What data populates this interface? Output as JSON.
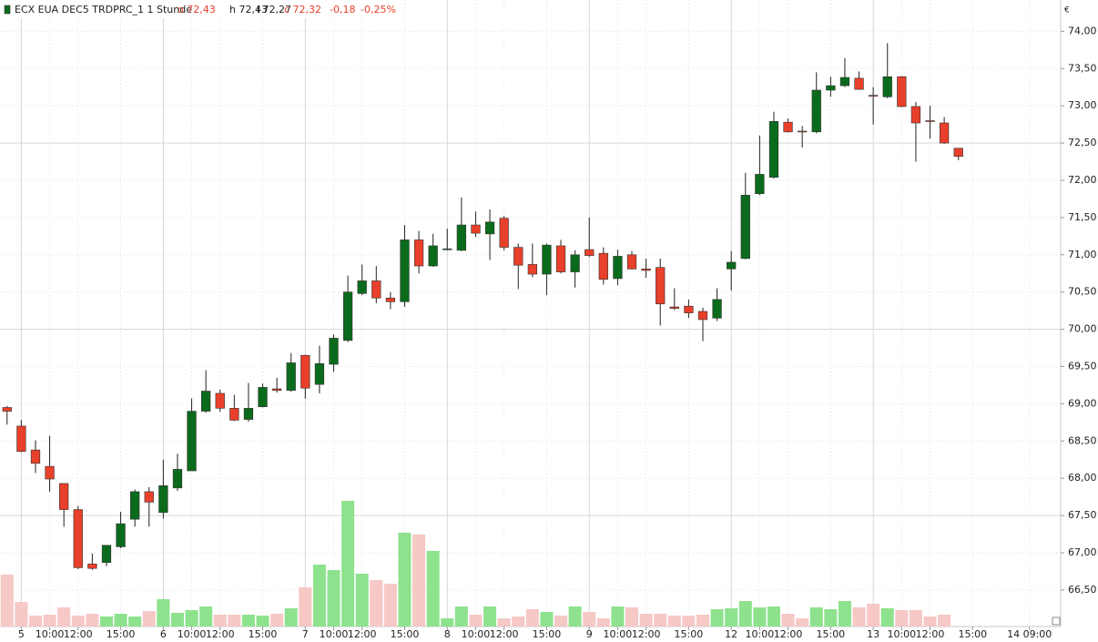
{
  "chart_data": {
    "type": "candlestick",
    "header": {
      "instrument": "ECX EUA DEC5 TRDPRC_1 1 Stunde",
      "open": "o 72,43",
      "high": "h 72,43",
      "low": "l 72,27",
      "close": "c 72,32",
      "change": "-0,18",
      "change_pct": "-0,25%"
    },
    "currency": "€",
    "up_color": "#0b6b1c",
    "down_color": "#e8402a",
    "volume_up_color": "#8ee28e",
    "volume_down_color": "#f6c8c6",
    "grid": true,
    "xlim": [
      -0.5,
      74.2
    ],
    "ylim": [
      66.01,
      74.42
    ],
    "xticks": [
      {
        "value": 1,
        "label": "5"
      },
      {
        "value": 3,
        "label": "10:00"
      },
      {
        "value": 5,
        "label": "12:00"
      },
      {
        "value": 8,
        "label": "15:00"
      },
      {
        "value": 11,
        "label": "6"
      },
      {
        "value": 13,
        "label": "10:00"
      },
      {
        "value": 15,
        "label": "12:00"
      },
      {
        "value": 18,
        "label": "15:00"
      },
      {
        "value": 21,
        "label": "7"
      },
      {
        "value": 23,
        "label": "10:00"
      },
      {
        "value": 25,
        "label": "12:00"
      },
      {
        "value": 28,
        "label": "15:00"
      },
      {
        "value": 31,
        "label": "8"
      },
      {
        "value": 33,
        "label": "10:00"
      },
      {
        "value": 35,
        "label": "12:00"
      },
      {
        "value": 38,
        "label": "15:00"
      },
      {
        "value": 41,
        "label": "9"
      },
      {
        "value": 43,
        "label": "10:00"
      },
      {
        "value": 45,
        "label": "12:00"
      },
      {
        "value": 48,
        "label": "15:00"
      },
      {
        "value": 51,
        "label": "12"
      },
      {
        "value": 53,
        "label": "10:00"
      },
      {
        "value": 55,
        "label": "12:00"
      },
      {
        "value": 58,
        "label": "15:00"
      },
      {
        "value": 61,
        "label": "13"
      },
      {
        "value": 63,
        "label": "10:00"
      },
      {
        "value": 65,
        "label": "12:00"
      },
      {
        "value": 68,
        "label": "15:00"
      },
      {
        "value": 72,
        "label": "14 09:00"
      }
    ],
    "yticks": [
      {
        "value": 66.5,
        "label": "66,50"
      },
      {
        "value": 67,
        "label": "67,00"
      },
      {
        "value": 67.5,
        "label": "67,50"
      },
      {
        "value": 68,
        "label": "68,00"
      },
      {
        "value": 68.5,
        "label": "68,50"
      },
      {
        "value": 69,
        "label": "69,00"
      },
      {
        "value": 69.5,
        "label": "69,50"
      },
      {
        "value": 70,
        "label": "70,00"
      },
      {
        "value": 70.5,
        "label": "70,50"
      },
      {
        "value": 71,
        "label": "71,00"
      },
      {
        "value": 71.5,
        "label": "71,50"
      },
      {
        "value": 72,
        "label": "72,00"
      },
      {
        "value": 72.5,
        "label": "72,50"
      },
      {
        "value": 73,
        "label": "73,00"
      },
      {
        "value": 73.5,
        "label": "73,50"
      },
      {
        "value": 74,
        "label": "74,00"
      }
    ],
    "open": [
      68.95,
      68.7,
      68.38,
      68.16,
      67.93,
      67.58,
      66.85,
      66.87,
      67.08,
      67.45,
      67.82,
      67.54,
      67.87,
      68.1,
      68.9,
      69.14,
      68.94,
      68.79,
      68.96,
      69.2,
      69.18,
      69.65,
      69.26,
      69.53,
      69.85,
      70.48,
      70.65,
      70.42,
      70.37,
      71.2,
      70.85,
      71.07,
      71.06,
      71.4,
      71.28,
      71.49,
      71.1,
      70.87,
      70.74,
      71.12,
      70.77,
      71.07,
      71.02,
      70.68,
      71.0,
      70.81,
      70.83,
      70.3,
      70.31,
      70.24,
      70.15,
      70.81,
      70.95,
      71.82,
      72.04,
      72.78,
      72.66,
      72.65,
      73.21,
      73.27,
      73.37,
      73.14,
      73.12,
      73.39,
      72.99,
      72.8,
      72.77,
      72.43
    ],
    "high": [
      68.97,
      68.78,
      68.51,
      68.57,
      67.93,
      67.63,
      66.99,
      67.1,
      67.55,
      67.85,
      67.88,
      68.25,
      68.33,
      69.07,
      69.45,
      69.19,
      69.12,
      69.28,
      69.27,
      69.35,
      69.68,
      69.66,
      69.78,
      69.93,
      70.72,
      70.87,
      70.85,
      70.5,
      71.4,
      71.32,
      71.28,
      71.35,
      71.77,
      71.58,
      71.61,
      71.52,
      71.15,
      71.15,
      71.15,
      71.2,
      71.06,
      71.5,
      71.1,
      71.07,
      71.05,
      70.95,
      70.95,
      70.55,
      70.4,
      70.29,
      70.55,
      71.05,
      72.1,
      72.6,
      72.92,
      72.83,
      72.73,
      73.45,
      73.39,
      73.64,
      73.46,
      73.25,
      73.84,
      73.4,
      73.05,
      73.0,
      72.85,
      72.43
    ],
    "low": [
      68.72,
      68.35,
      68.07,
      67.82,
      67.35,
      66.78,
      66.77,
      66.82,
      67.06,
      67.35,
      67.35,
      67.46,
      67.83,
      68.1,
      68.88,
      68.89,
      68.77,
      68.76,
      68.95,
      69.15,
      69.16,
      69.07,
      69.14,
      69.43,
      69.83,
      70.46,
      70.35,
      70.27,
      70.3,
      70.75,
      70.84,
      71.06,
      71.05,
      71.24,
      70.93,
      71.06,
      70.54,
      70.7,
      70.46,
      70.75,
      70.56,
      70.97,
      70.6,
      70.59,
      70.8,
      70.69,
      70.05,
      70.26,
      70.15,
      69.84,
      70.11,
      70.52,
      70.94,
      71.8,
      72.02,
      72.64,
      72.44,
      72.63,
      73.12,
      73.25,
      73.22,
      72.75,
      73.1,
      72.98,
      72.25,
      72.56,
      72.49,
      72.27
    ],
    "close": [
      68.9,
      68.36,
      68.2,
      67.99,
      67.58,
      66.8,
      66.79,
      67.1,
      67.39,
      67.82,
      67.68,
      67.9,
      68.12,
      68.9,
      69.17,
      68.94,
      68.78,
      68.94,
      69.22,
      69.18,
      69.55,
      69.21,
      69.54,
      69.88,
      70.5,
      70.65,
      70.42,
      70.37,
      71.2,
      70.85,
      71.12,
      71.08,
      71.4,
      71.29,
      71.44,
      71.1,
      70.86,
      70.74,
      71.13,
      70.77,
      71.0,
      70.99,
      70.67,
      70.98,
      70.81,
      70.79,
      70.34,
      70.28,
      70.22,
      70.13,
      70.4,
      70.9,
      71.8,
      72.08,
      72.79,
      72.65,
      72.65,
      73.21,
      73.27,
      73.38,
      73.22,
      73.13,
      73.39,
      72.99,
      72.77,
      72.79,
      72.5,
      72.32
    ],
    "volume": [
      57,
      27,
      12,
      13,
      21,
      12,
      14,
      11,
      14,
      11,
      17,
      30,
      15,
      18,
      22,
      13,
      13,
      13,
      12,
      14,
      20,
      43,
      68,
      62,
      138,
      58,
      51,
      47,
      103,
      101,
      83,
      9,
      22,
      13,
      22,
      9,
      11,
      19,
      16,
      12,
      22,
      16,
      9,
      22,
      21,
      14,
      14,
      12,
      12,
      13,
      19,
      20,
      28,
      21,
      22,
      14,
      9,
      21,
      19,
      28,
      21,
      25,
      20,
      18,
      18,
      11,
      13,
      null
    ]
  }
}
